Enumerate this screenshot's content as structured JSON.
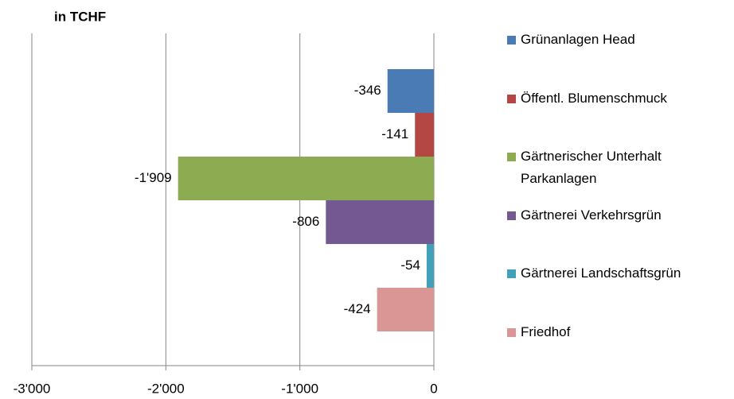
{
  "chart_data": {
    "type": "bar",
    "orientation": "horizontal",
    "title": "in TCHF",
    "categories": [
      null
    ],
    "series": [
      {
        "name": "Grünanlagen Head",
        "color": "#4a7bb4",
        "values": [
          -346
        ],
        "value_labels": [
          "-346"
        ]
      },
      {
        "name": "Öffentl. Blumenschmuck",
        "color": "#b44743",
        "values": [
          -141
        ],
        "value_labels": [
          "-141"
        ]
      },
      {
        "name": "Gärtnerischer Unterhalt Parkanlagen",
        "color": "#8dab50",
        "values": [
          -1909
        ],
        "value_labels": [
          "-1'909"
        ]
      },
      {
        "name": "Gärtnerei Verkehrsgrün",
        "color": "#735892",
        "values": [
          -806
        ],
        "value_labels": [
          "-806"
        ]
      },
      {
        "name": "Gärtnerei Landschaftsgrün",
        "color": "#40a1b8",
        "values": [
          -54
        ],
        "value_labels": [
          "-54"
        ]
      },
      {
        "name": "Friedhof",
        "color": "#d99694",
        "values": [
          -424
        ],
        "value_labels": [
          "-424"
        ]
      }
    ],
    "xlim": [
      -3000,
      0
    ],
    "xticks": [
      {
        "value": -3000,
        "label": "-3'000"
      },
      {
        "value": -2000,
        "label": "-2'000"
      },
      {
        "value": -1000,
        "label": "-1'000"
      },
      0
    ],
    "grid": true,
    "legend": "right"
  }
}
